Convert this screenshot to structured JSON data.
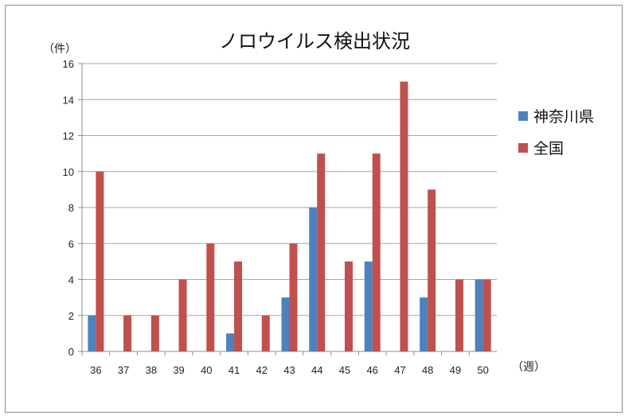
{
  "chart_data": {
    "type": "bar",
    "title": "ノロウイルス検出状況",
    "ylabel": "（件）",
    "xlabel": "（週）",
    "ylim": [
      0,
      16
    ],
    "yticks": [
      "0",
      "2",
      "4",
      "6",
      "8",
      "10",
      "12",
      "14",
      "16"
    ],
    "grid": true,
    "legend_position": "right",
    "categories": [
      "36",
      "37",
      "38",
      "39",
      "40",
      "41",
      "42",
      "43",
      "44",
      "45",
      "46",
      "47",
      "48",
      "49",
      "50"
    ],
    "series": [
      {
        "name": "神奈川県",
        "color": "#4f81bd",
        "values": [
          2,
          0,
          0,
          0,
          0,
          1,
          0,
          3,
          8,
          0,
          5,
          0,
          3,
          0,
          4
        ]
      },
      {
        "name": "全国",
        "color": "#c0504d",
        "values": [
          10,
          2,
          2,
          4,
          6,
          5,
          2,
          6,
          11,
          5,
          11,
          15,
          9,
          4,
          4
        ]
      }
    ]
  }
}
